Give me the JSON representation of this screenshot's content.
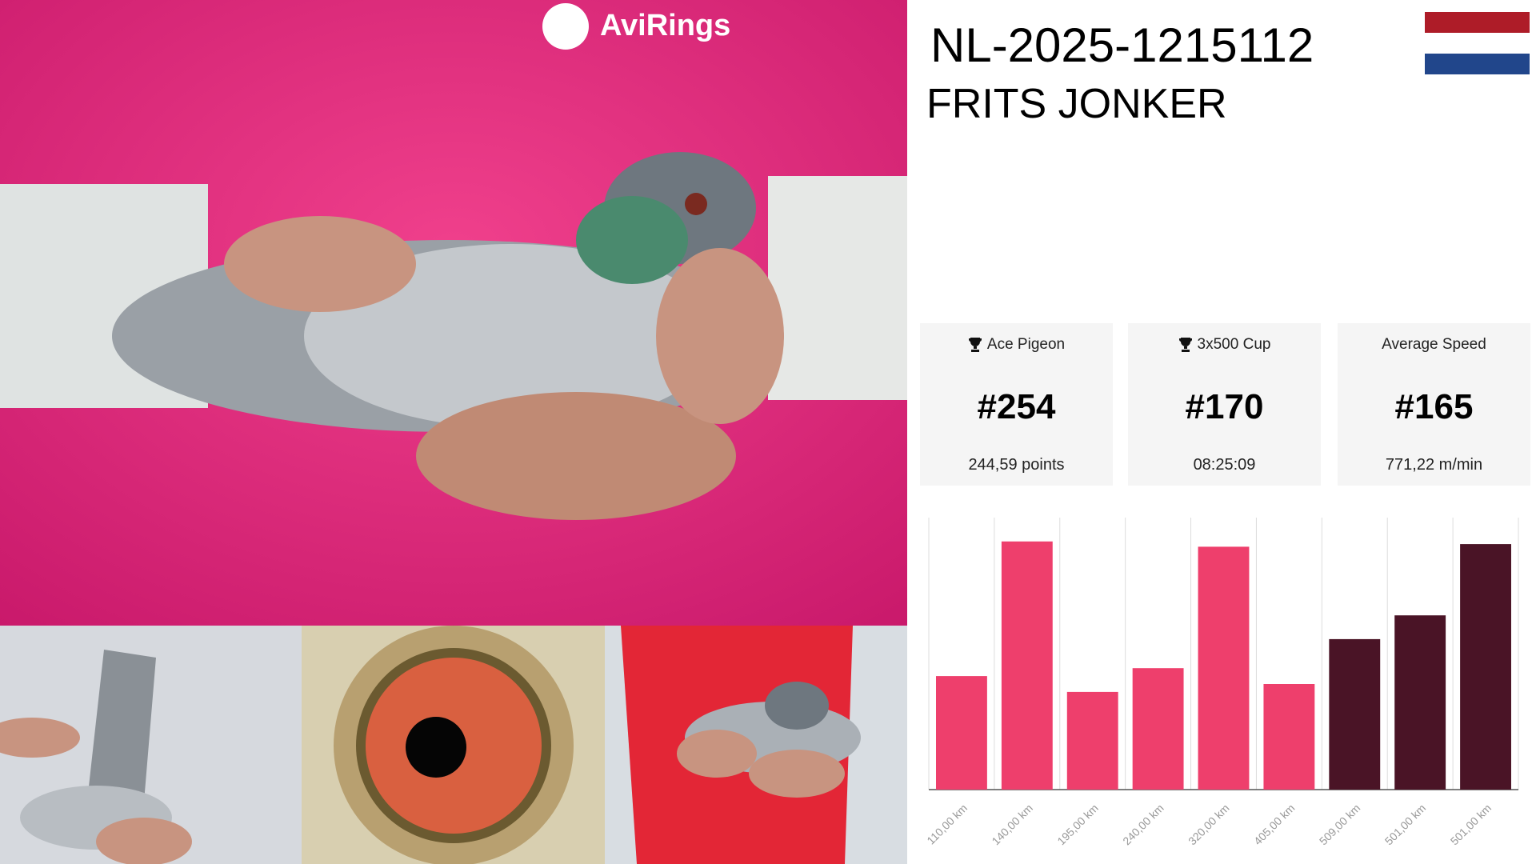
{
  "photos": {
    "logo": "AviRings"
  },
  "header": {
    "ring": "NL-2025-1215112",
    "owner": "FRITS JONKER"
  },
  "stats": [
    {
      "title": "Ace Pigeon",
      "rank": "#254",
      "detail": "244,59 points"
    },
    {
      "title": "3x500 Cup",
      "rank": "#170",
      "detail": "08:25:09"
    },
    {
      "title": "Average Speed",
      "rank": "#165",
      "detail": "771,22 m/min"
    }
  ],
  "chart_data": {
    "type": "bar",
    "categories": [
      "110,00 km",
      "140,00 km",
      "195,00 km",
      "240,00 km",
      "320,00 km",
      "405,00 km",
      "509,00 km",
      "501,00 km",
      "501,00 km"
    ],
    "values": [
      43,
      94,
      37,
      46,
      92,
      40,
      57,
      66,
      93
    ],
    "colors": [
      "#ee3f6c",
      "#ee3f6c",
      "#ee3f6c",
      "#ee3f6c",
      "#ee3f6c",
      "#ee3f6c",
      "#4a1426",
      "#4a1426",
      "#4a1426"
    ],
    "ylim": [
      0,
      100
    ],
    "grid": true
  }
}
